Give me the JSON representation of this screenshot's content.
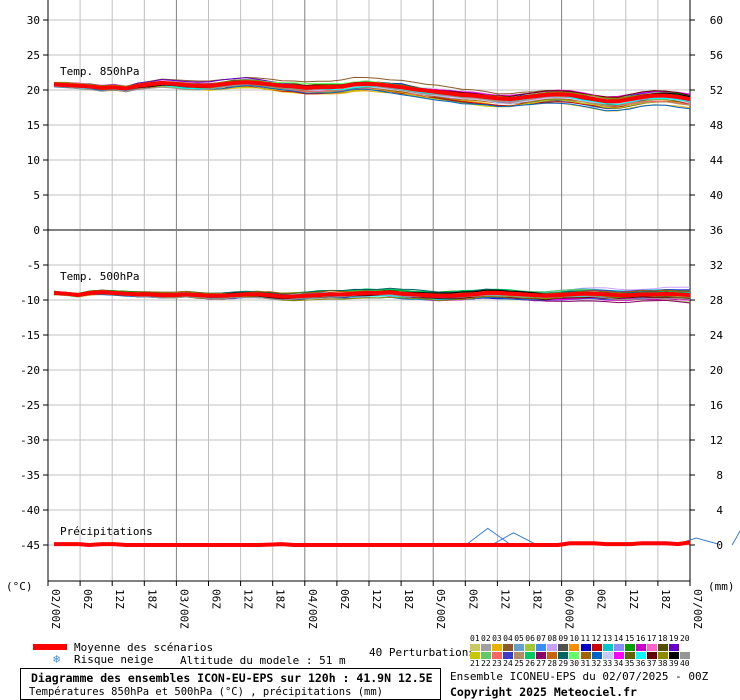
{
  "chart_data": {
    "type": "line",
    "panels": [
      {
        "title": "Temp. 850hPa",
        "ylabel": "(°C)",
        "ylim_left": [
          0,
          30
        ],
        "left_ticks": [
          "30",
          "25",
          "20",
          "15",
          "10",
          "5",
          "0"
        ],
        "right_ticks": [
          "60",
          "56",
          "52",
          "48",
          "44",
          "40",
          "36"
        ],
        "mean_values": [
          20.8,
          20.7,
          20.6,
          20.5,
          20.3,
          20.4,
          20.2,
          20.6,
          20.8,
          21.0,
          20.9,
          20.7,
          20.6,
          20.6,
          20.8,
          21.0,
          21.1,
          21.0,
          20.8,
          20.6,
          20.5,
          20.3,
          20.4,
          20.4,
          20.5,
          20.8,
          20.9,
          20.8,
          20.6,
          20.4,
          20.1,
          19.9,
          19.7,
          19.5,
          19.3,
          19.2,
          19.0,
          18.8,
          18.7,
          18.9,
          19.1,
          19.3,
          19.4,
          19.3,
          19.0,
          18.7,
          18.4,
          18.4,
          18.7,
          19.0,
          19.2,
          19.2,
          19.0,
          18.7
        ],
        "spread": 1.8
      },
      {
        "title": "Temp. 500hPa",
        "ylim_left": [
          -20,
          -5
        ],
        "left_ticks": [
          "-5",
          "-10",
          "-15",
          "-20"
        ],
        "right_ticks": [
          "32",
          "28",
          "24",
          "20"
        ],
        "mean_values": [
          -9.0,
          -9.1,
          -9.3,
          -9.0,
          -8.9,
          -9.0,
          -9.1,
          -9.2,
          -9.2,
          -9.3,
          -9.3,
          -9.2,
          -9.3,
          -9.4,
          -9.4,
          -9.3,
          -9.2,
          -9.2,
          -9.3,
          -9.5,
          -9.5,
          -9.4,
          -9.3,
          -9.2,
          -9.2,
          -9.1,
          -9.0,
          -9.0,
          -8.9,
          -9.1,
          -9.2,
          -9.3,
          -9.4,
          -9.4,
          -9.3,
          -9.2,
          -9.0,
          -9.0,
          -9.1,
          -9.2,
          -9.3,
          -9.4,
          -9.3,
          -9.2,
          -9.1,
          -9.1,
          -9.2,
          -9.3,
          -9.3,
          -9.2,
          -9.2,
          -9.1,
          -9.2,
          -9.3
        ],
        "spread": 1.2
      },
      {
        "title": "Précipitations",
        "xlabel": "(mm)",
        "ylim_left": [
          -45,
          -25
        ],
        "left_ticks": [
          "-25",
          "-30",
          "-35",
          "-40",
          "-45"
        ],
        "right_ticks": [
          "16",
          "12",
          "8",
          "4",
          "0"
        ],
        "mean_values": [
          0.1,
          0.1,
          0.1,
          0,
          0.1,
          0.1,
          0,
          0,
          0,
          0,
          0,
          0,
          0,
          0,
          0,
          0,
          0,
          0,
          0.05,
          0.1,
          0,
          0,
          0,
          0,
          0,
          0,
          0,
          0,
          0,
          0,
          0,
          0,
          0,
          0,
          0,
          0,
          0,
          0,
          0,
          0,
          0,
          0,
          0,
          0.2,
          0.2,
          0.2,
          0.1,
          0.1,
          0.1,
          0.2,
          0.2,
          0.2,
          0.1,
          0.3
        ],
        "spikes": [
          [
            13.7,
            1.9
          ],
          [
            14.5,
            1.4
          ],
          [
            20.2,
            0.8
          ],
          [
            22.0,
            4.5
          ],
          [
            24.2,
            2.2
          ],
          [
            25.0,
            3.0
          ]
        ]
      }
    ],
    "x_ticks": [
      "02/00Z",
      "06Z",
      "12Z",
      "18Z",
      "03/00Z",
      "06Z",
      "12Z",
      "18Z",
      "04/00Z",
      "06Z",
      "12Z",
      "18Z",
      "05/00Z",
      "06Z",
      "12Z",
      "18Z",
      "06/00Z",
      "06Z",
      "12Z",
      "18Z",
      "07/00Z"
    ],
    "left_axis_unit": "(°C)",
    "right_axis_unit": "(mm)",
    "mean_color": "#ff0000",
    "grid": true
  },
  "legend": {
    "mean_label": "Moyenne des scénarios",
    "snow_label": "Risque neige",
    "altitude_label": "Altitude du modele : 51 m",
    "perturbations_label": "40 Perturbations",
    "perturbation_numbers_row1": [
      "01",
      "02",
      "03",
      "04",
      "05",
      "06",
      "07",
      "08",
      "09",
      "10",
      "11",
      "12",
      "13",
      "14",
      "15",
      "16",
      "17",
      "18",
      "19",
      "20"
    ],
    "perturbation_numbers_row2": [
      "21",
      "22",
      "23",
      "24",
      "25",
      "26",
      "27",
      "28",
      "29",
      "30",
      "31",
      "32",
      "33",
      "34",
      "35",
      "36",
      "37",
      "38",
      "39",
      "40"
    ],
    "perturbation_colors": [
      "#c8c864",
      "#a0a0a0",
      "#e6b400",
      "#8c5a28",
      "#64a0c8",
      "#a0c832",
      "#3c8cff",
      "#c8a0ff",
      "#505050",
      "#ff8c00",
      "#0000c8",
      "#c80000",
      "#00c8c8",
      "#8c8cff",
      "#00a000",
      "#c800c8",
      "#ff64c8",
      "#505000",
      "#6400c8",
      "#ffffff",
      "#c8c800",
      "#64c864",
      "#ff6464",
      "#3c3cc8",
      "#b48c64",
      "#00c864",
      "#8c0064",
      "#c86400",
      "#006464",
      "#64ff64",
      "#a06400",
      "#0064c8",
      "#c8c8ff",
      "#ff00ff",
      "#646400",
      "#00ffff",
      "#640000",
      "#8c8c00",
      "#000000",
      "#969696"
    ]
  },
  "footer": {
    "title": "Diagramme des ensembles ICON-EU-EPS sur 120h : 41.9N 12.5E",
    "subtitle": "Températures 850hPa et 500hPa (°C) , précipitations (mm)",
    "run": "Ensemble ICONEU-EPS du 02/07/2025 - 00Z",
    "copyright": "Copyright 2025 Meteociel.fr"
  }
}
